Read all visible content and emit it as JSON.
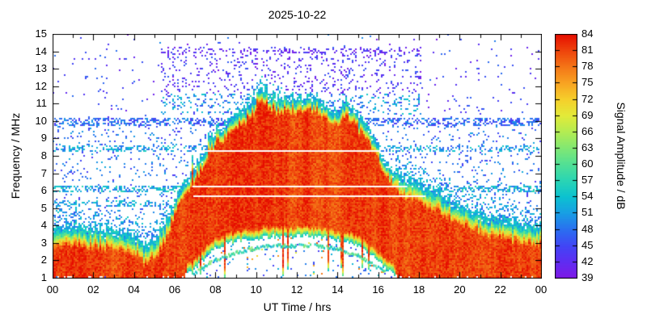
{
  "title": "2025-10-22",
  "chart_data": {
    "type": "heatmap",
    "title": "2025-10-22",
    "xlabel": "UT Time / hrs",
    "ylabel": "Frequency / MHz",
    "cblabel": "Signal Amplitude / dB",
    "x_range": [
      0,
      24
    ],
    "y_range": [
      1,
      15
    ],
    "cb_range": [
      39,
      84
    ],
    "grid": false,
    "x_ticks": [
      {
        "t": 0,
        "label": "00"
      },
      {
        "t": 2,
        "label": "02"
      },
      {
        "t": 4,
        "label": "04"
      },
      {
        "t": 6,
        "label": "06"
      },
      {
        "t": 8,
        "label": "08"
      },
      {
        "t": 10,
        "label": "10"
      },
      {
        "t": 12,
        "label": "12"
      },
      {
        "t": 14,
        "label": "14"
      },
      {
        "t": 16,
        "label": "16"
      },
      {
        "t": 18,
        "label": "18"
      },
      {
        "t": 20,
        "label": "20"
      },
      {
        "t": 22,
        "label": "22"
      },
      {
        "t": 24,
        "label": "00"
      }
    ],
    "y_ticks": [
      1,
      2,
      3,
      4,
      5,
      6,
      7,
      8,
      9,
      10,
      11,
      12,
      13,
      14,
      15
    ],
    "cb_ticks": [
      39,
      42,
      45,
      48,
      51,
      54,
      57,
      60,
      63,
      66,
      69,
      72,
      75,
      78,
      81,
      84
    ],
    "colormap": [
      [
        39,
        "#7f19e6"
      ],
      [
        42,
        "#5f2df2"
      ],
      [
        45,
        "#4146f5"
      ],
      [
        48,
        "#2a70f0"
      ],
      [
        51,
        "#189fe4"
      ],
      [
        54,
        "#0cc2d0"
      ],
      [
        57,
        "#2bd5b4"
      ],
      [
        60,
        "#52e095"
      ],
      [
        63,
        "#82e873"
      ],
      [
        66,
        "#b4ec52"
      ],
      [
        69,
        "#e3ea39"
      ],
      [
        72,
        "#f6cf2b"
      ],
      [
        75,
        "#f8a322"
      ],
      [
        78,
        "#f47517"
      ],
      [
        81,
        "#ee430c"
      ],
      [
        84,
        "#e60d00"
      ]
    ],
    "features": {
      "core_amplitude_db": 82,
      "noise_floor_db_range": [
        39,
        52
      ],
      "fof2_envelope": {
        "t": [
          0,
          1,
          2,
          3,
          4,
          4.6,
          5,
          5.5,
          6,
          6.5,
          7,
          7.5,
          8,
          8.5,
          9,
          9.5,
          10,
          10.3,
          10.7,
          11,
          11.5,
          12,
          12.5,
          13,
          13.5,
          14,
          14.3,
          14.7,
          15,
          15.5,
          16,
          16.5,
          17,
          17.5,
          18,
          18.5,
          19,
          20,
          21,
          22,
          23,
          24
        ],
        "f": [
          3.7,
          3.7,
          3.6,
          3.5,
          3.3,
          2.6,
          3.0,
          3.9,
          5.2,
          6.3,
          7.3,
          8.0,
          9.2,
          9.5,
          10.1,
          10.5,
          11.2,
          11.6,
          11.3,
          11.0,
          11.2,
          11.0,
          11.2,
          10.8,
          10.6,
          10.3,
          10.9,
          10.6,
          10.0,
          9.4,
          8.2,
          7.1,
          6.7,
          6.4,
          6.3,
          5.9,
          5.6,
          4.9,
          4.4,
          4.1,
          3.9,
          3.7
        ]
      },
      "red_bottom": {
        "t": [
          0,
          6.3,
          7,
          7.5,
          8,
          9,
          10,
          11,
          12,
          13,
          14,
          15,
          15.5,
          16,
          16.5,
          17,
          24
        ],
        "f": [
          1,
          1,
          1.6,
          2.2,
          2.7,
          3.1,
          3.3,
          3.4,
          3.4,
          3.4,
          3.2,
          2.9,
          2.5,
          2.0,
          1.4,
          1,
          1
        ]
      },
      "e_layer_arc": {
        "t": [
          6.9,
          7.5,
          8,
          9,
          10,
          11,
          12,
          13,
          14,
          15,
          15.7,
          16.3
        ],
        "f": [
          1.3,
          1.8,
          2.1,
          2.5,
          2.8,
          2.9,
          2.9,
          2.9,
          2.7,
          2.3,
          1.8,
          1.4
        ]
      },
      "white_lines": [
        {
          "f": 8.35,
          "t0": 7.1,
          "t1": 16.1
        },
        {
          "f": 6.32,
          "t0": 6.85,
          "t1": 17.4
        },
        {
          "f": 5.78,
          "t0": 6.9,
          "t1": 18.3
        }
      ],
      "interference_bands_mhz": [
        6.1,
        8.45,
        9.95
      ],
      "purple_noise_region": {
        "t": [
          5.3,
          18.1
        ],
        "f": [
          10.4,
          14.25
        ]
      }
    }
  }
}
